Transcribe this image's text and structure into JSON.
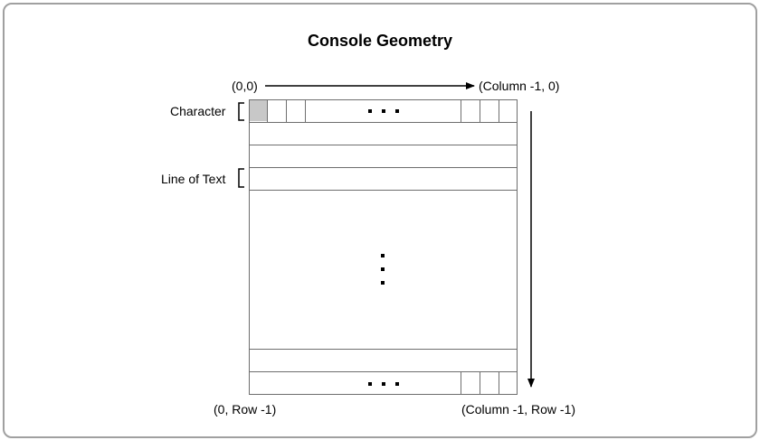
{
  "title": "Console Geometry",
  "labels": {
    "origin": "(0,0)",
    "top_right": "(Column -1, 0)",
    "bottom_left": "(0, Row -1)",
    "bottom_right": "(Column -1, Row -1)",
    "character": "Character",
    "line_of_text": "Line of Text"
  },
  "colors": {
    "highlighted_cell": "#c8c8c8",
    "grid_lines": "#6e6e6e",
    "frame_border": "#a0a0a0"
  }
}
